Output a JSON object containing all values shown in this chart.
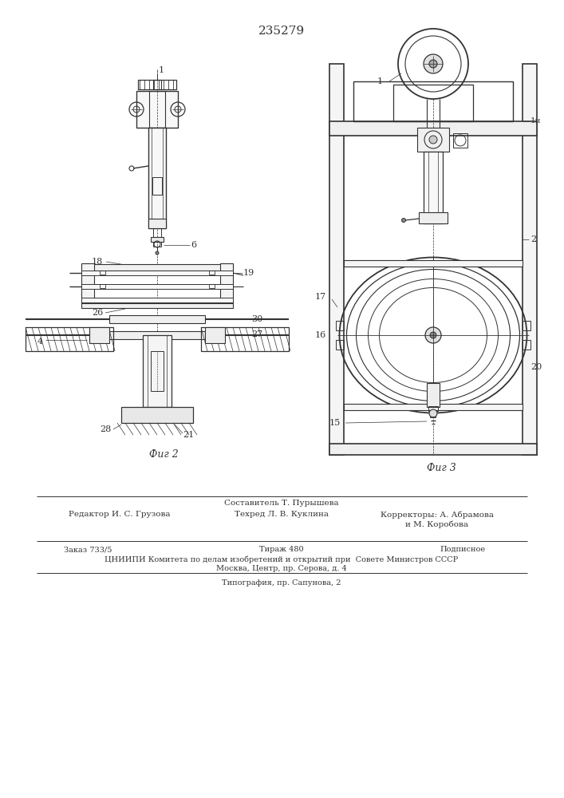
{
  "patent_number": "235279",
  "fig2_label": "Фиг 2",
  "fig3_label": "Фиг 3",
  "text_sostavitel": "Составитель Т. Пурышева",
  "text_redaktor": "Редактор И. С. Грузова",
  "text_tekhred": "Техред Л. В. Куклина",
  "text_korrektory": "Корректоры: А. Абрамова",
  "text_korrektory2": "и М. Коробова",
  "text_zakaz": "Заказ 733/5",
  "text_tirazh": "Тираж 480",
  "text_podpisnoe": "Подписное",
  "text_cniip": "ЦНИИПИ Комитета по делам изобретений и открытий при  Совете Министров СССР",
  "text_moskva": "Москва, Центр, пр. Серова, д. 4",
  "text_tipografia": "Типография, пр. Сапунова, 2",
  "bg_color": "#ffffff",
  "line_color": "#333333"
}
